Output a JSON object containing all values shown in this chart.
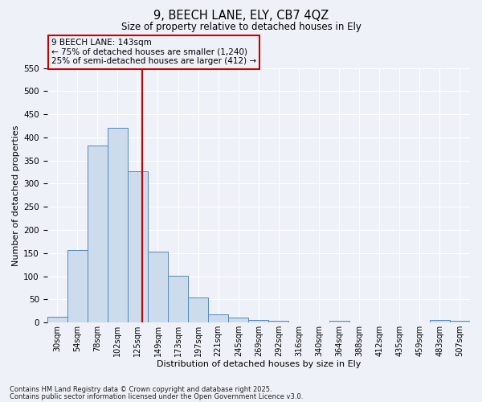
{
  "title": "9, BEECH LANE, ELY, CB7 4QZ",
  "subtitle": "Size of property relative to detached houses in Ely",
  "xlabel": "Distribution of detached houses by size in Ely",
  "ylabel": "Number of detached properties",
  "bin_labels": [
    "30sqm",
    "54sqm",
    "78sqm",
    "102sqm",
    "125sqm",
    "149sqm",
    "173sqm",
    "197sqm",
    "221sqm",
    "245sqm",
    "269sqm",
    "292sqm",
    "316sqm",
    "340sqm",
    "364sqm",
    "388sqm",
    "412sqm",
    "435sqm",
    "459sqm",
    "483sqm",
    "507sqm"
  ],
  "bar_values": [
    13,
    157,
    383,
    421,
    327,
    153,
    101,
    54,
    18,
    10,
    5,
    4,
    0,
    0,
    3,
    1,
    1,
    0,
    0,
    5,
    4
  ],
  "bar_color": "#ccdcec",
  "bar_edge_color": "#5588bb",
  "vline_x": 4.72,
  "vline_color": "#cc0000",
  "annotation_title": "9 BEECH LANE: 143sqm",
  "annotation_line1": "← 75% of detached houses are smaller (1,240)",
  "annotation_line2": "25% of semi-detached houses are larger (412) →",
  "annotation_box_ec": "#cc0000",
  "ylim": [
    0,
    550
  ],
  "yticks": [
    0,
    50,
    100,
    150,
    200,
    250,
    300,
    350,
    400,
    450,
    500,
    550
  ],
  "footer1": "Contains HM Land Registry data © Crown copyright and database right 2025.",
  "footer2": "Contains public sector information licensed under the Open Government Licence v3.0.",
  "bg_color": "#eef2f8"
}
